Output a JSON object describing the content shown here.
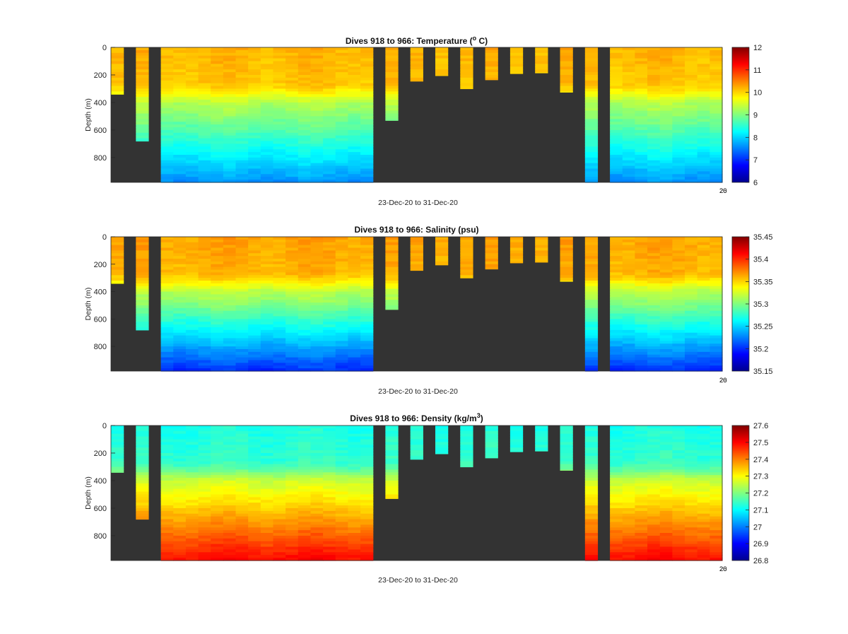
{
  "colors": {
    "background": "#ffffff",
    "no_data": "#333333",
    "text": "#222222",
    "colormap": [
      "#00008f",
      "#0000ff",
      "#0080ff",
      "#00ffff",
      "#80ff80",
      "#ffff00",
      "#ff8000",
      "#ff0000",
      "#800000"
    ]
  },
  "chart_data": [
    {
      "type": "heatmap",
      "title": "Dives 918 to 966: Temperature (",
      "title_sup": "o",
      "title_tail": " C)",
      "xlabel": "23-Dec-20 to 31-Dec-20",
      "ylabel": "Depth (m)",
      "x_end_tick_labels": [
        "20",
        "26"
      ],
      "ylim": [
        0,
        980
      ],
      "yticks": [
        0,
        200,
        400,
        600,
        800
      ],
      "colorbar_ticks": [
        6,
        7,
        8,
        9,
        10,
        11,
        12
      ],
      "clim": [
        6,
        12
      ],
      "field": "temperature",
      "profiles": {
        "top": 10.2,
        "upper_bottom": 10.1,
        "mid": 9.2,
        "deep": 7.6
      }
    },
    {
      "type": "heatmap",
      "title": "Dives 918 to 966: Salinity (psu)",
      "title_sup": "",
      "title_tail": "",
      "xlabel": "23-Dec-20 to 31-Dec-20",
      "ylabel": "Depth (m)",
      "x_end_tick_labels": [
        "20",
        "26"
      ],
      "ylim": [
        0,
        980
      ],
      "yticks": [
        0,
        200,
        400,
        600,
        800
      ],
      "colorbar_ticks": [
        35.15,
        35.2,
        35.25,
        35.3,
        35.35,
        35.4,
        35.45
      ],
      "clim": [
        35.15,
        35.45
      ],
      "field": "salinity",
      "profiles": {
        "top": 35.365,
        "upper_bottom": 35.36,
        "mid": 35.31,
        "deep": 35.2
      }
    },
    {
      "type": "heatmap",
      "title": "Dives 918 to 966: Density (kg/m",
      "title_sup": "3",
      "title_tail": ")",
      "xlabel": "23-Dec-20 to 31-Dec-20",
      "ylabel": "Depth (m)",
      "x_end_tick_labels": [
        "20",
        "26"
      ],
      "ylim": [
        0,
        980
      ],
      "yticks": [
        0,
        200,
        400,
        600,
        800
      ],
      "colorbar_ticks": [
        26.8,
        26.9,
        27,
        27.1,
        27.2,
        27.3,
        27.4,
        27.5,
        27.6
      ],
      "clim": [
        26.8,
        27.6
      ],
      "field": "density",
      "profiles": {
        "top": 27.12,
        "upper_bottom": 27.14,
        "mid": 27.28,
        "deep": 27.5
      }
    }
  ],
  "dive_max_depth_m": [
    340,
    0,
    680,
    0,
    980,
    980,
    980,
    980,
    980,
    980,
    980,
    980,
    980,
    980,
    980,
    980,
    980,
    980,
    980,
    980,
    980,
    0,
    530,
    0,
    245,
    0,
    205,
    0,
    300,
    0,
    235,
    0,
    190,
    0,
    185,
    0,
    325,
    0,
    980,
    0,
    980,
    980,
    980,
    980,
    980,
    980,
    980,
    980,
    980
  ]
}
